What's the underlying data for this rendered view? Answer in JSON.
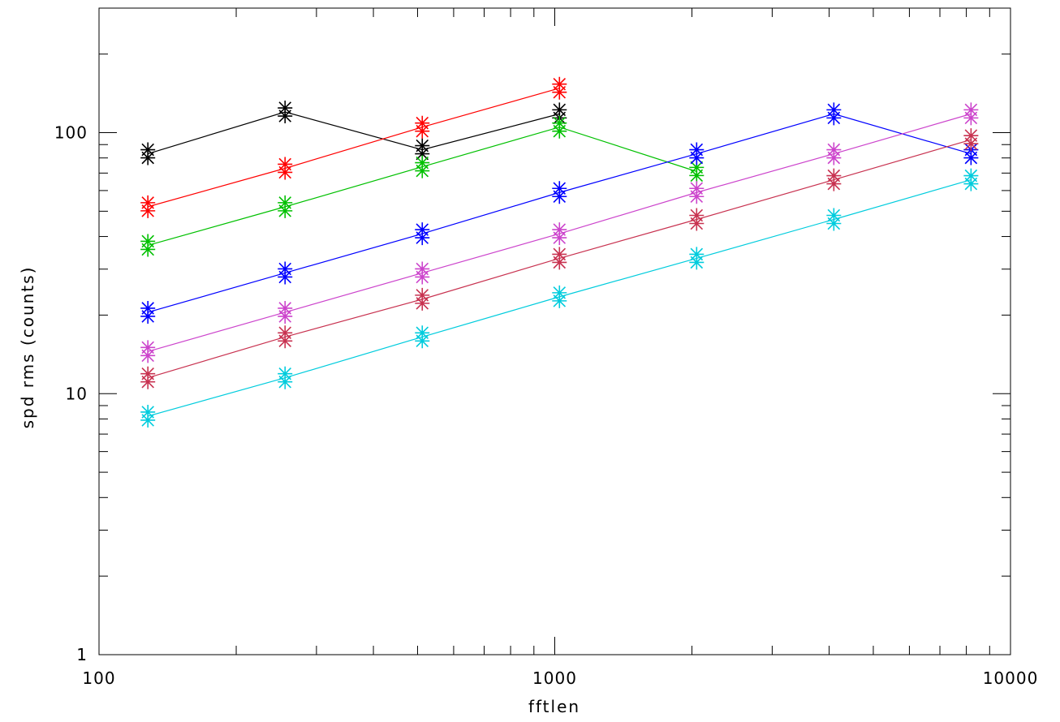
{
  "chart_data": {
    "type": "line",
    "title": "",
    "xlabel": "fftlen",
    "ylabel": "spd rms (counts)",
    "x_scale": "log",
    "y_scale": "log",
    "xlim": [
      100,
      10000
    ],
    "ylim": [
      1,
      300
    ],
    "grid": false,
    "x_ticks": [
      {
        "value": 100,
        "label": "100"
      },
      {
        "value": 1000,
        "label": "1000"
      },
      {
        "value": 10000,
        "label": "10000"
      }
    ],
    "y_ticks": [
      {
        "value": 1,
        "label": "1"
      },
      {
        "value": 10,
        "label": "10"
      },
      {
        "value": 100,
        "label": "100"
      }
    ],
    "marker": "asterisk",
    "series": [
      {
        "color": "#000000",
        "x": [
          128,
          256,
          512,
          1024
        ],
        "y": [
          83,
          120,
          86,
          118
        ]
      },
      {
        "color": "#ff0000",
        "x": [
          128,
          256,
          512,
          1024
        ],
        "y": [
          52,
          73,
          105,
          148
        ]
      },
      {
        "color": "#00c000",
        "x": [
          128,
          256,
          512,
          1024,
          2048
        ],
        "y": [
          37,
          52,
          74,
          105,
          71
        ]
      },
      {
        "color": "#0000ff",
        "x": [
          128,
          256,
          512,
          1024,
          2048,
          4096,
          8192
        ],
        "y": [
          20.5,
          29,
          41,
          59,
          83,
          118,
          83
        ]
      },
      {
        "color": "#cc44cc",
        "x": [
          128,
          256,
          512,
          1024,
          2048,
          4096,
          8192
        ],
        "y": [
          14.5,
          20.5,
          29,
          41,
          59,
          83,
          118
        ]
      },
      {
        "color": "#c83250",
        "x": [
          128,
          256,
          512,
          1024,
          2048,
          4096,
          8192
        ],
        "y": [
          11.5,
          16.5,
          23,
          33,
          46.5,
          66,
          94
        ]
      },
      {
        "color": "#00ccdd",
        "x": [
          128,
          256,
          512,
          1024,
          2048,
          4096,
          8192
        ],
        "y": [
          8.2,
          11.5,
          16.5,
          23.5,
          33,
          46.5,
          66
        ]
      }
    ]
  }
}
